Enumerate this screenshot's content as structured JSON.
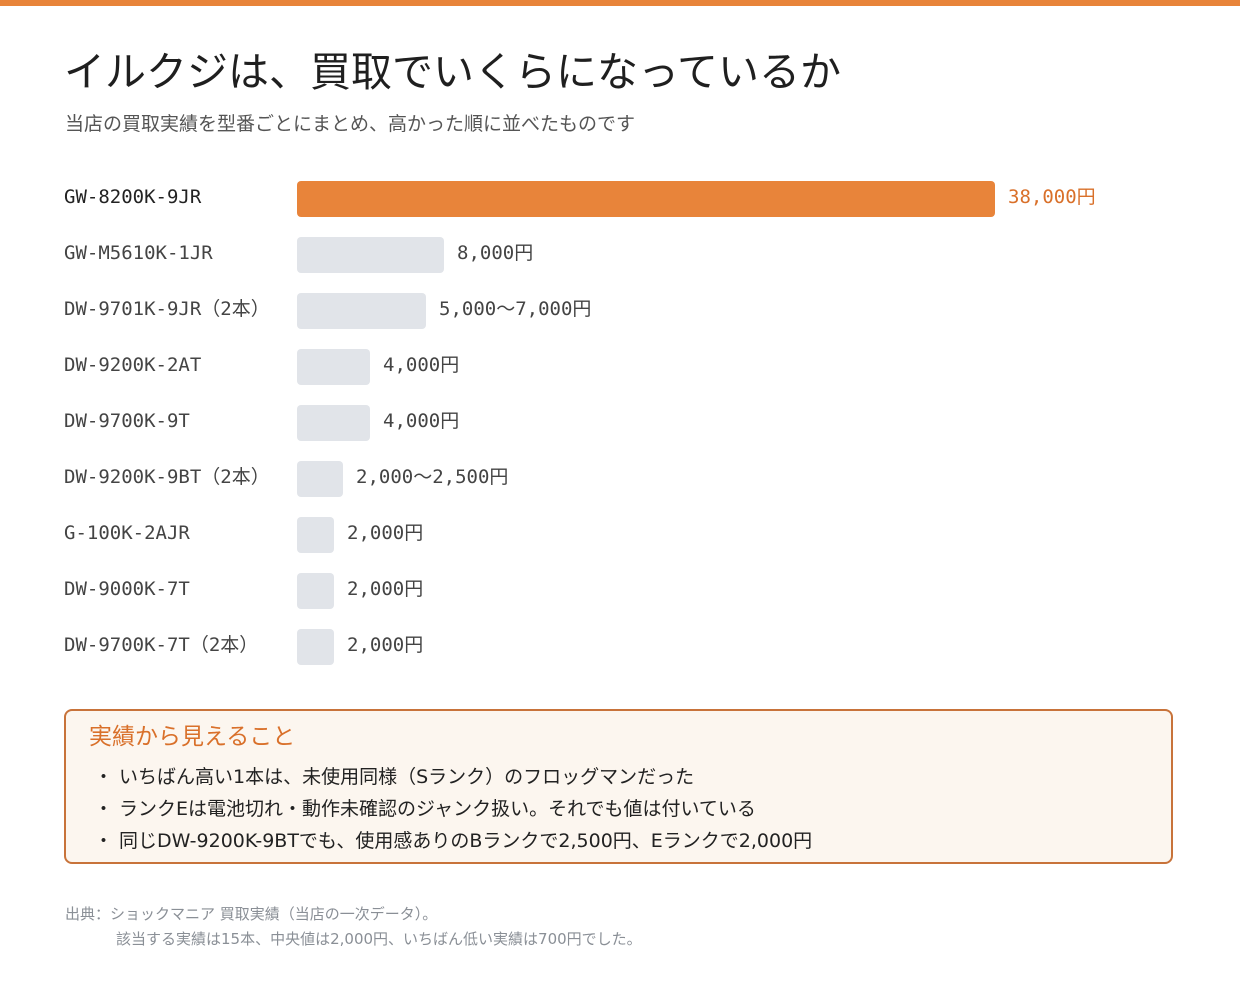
{
  "header": {
    "accent_color": "#e8843a",
    "title": "イルクジは、買取でいくらになっているか",
    "subtitle": "当店の買取実績を型番ごとにまとめ、高かった順に並べたものです"
  },
  "chart_data": {
    "type": "bar",
    "orientation": "horizontal",
    "title": "",
    "xlabel": "",
    "ylabel": "",
    "xlim": [
      0,
      38000
    ],
    "grid": false,
    "highlight_color": "#e8843a",
    "bar_color": "#e1e4e9",
    "bars": [
      {
        "label": "GW-8200K-9JR",
        "value": 38000,
        "value_label": "38,000円",
        "highlight": true
      },
      {
        "label": "GW-M5610K-1JR",
        "value": 8000,
        "value_label": "8,000円",
        "highlight": false
      },
      {
        "label": "DW-9701K-9JR（2本）",
        "value": 7000,
        "value_label": "5,000～7,000円",
        "highlight": false
      },
      {
        "label": "DW-9200K-2AT",
        "value": 4000,
        "value_label": "4,000円",
        "highlight": false
      },
      {
        "label": "DW-9700K-9T",
        "value": 4000,
        "value_label": "4,000円",
        "highlight": false
      },
      {
        "label": "DW-9200K-9BT（2本）",
        "value": 2500,
        "value_label": "2,000～2,500円",
        "highlight": false
      },
      {
        "label": "G-100K-2AJR",
        "value": 2000,
        "value_label": "2,000円",
        "highlight": false
      },
      {
        "label": "DW-9000K-7T",
        "value": 2000,
        "value_label": "2,000円",
        "highlight": false
      },
      {
        "label": "DW-9700K-7T（2本）",
        "value": 2000,
        "value_label": "2,000円",
        "highlight": false
      }
    ]
  },
  "insights": {
    "title": "実績から見えること",
    "bullet": "・",
    "items": [
      "いちばん高い1本は、未使用同様（Sランク）のフロッグマンだった",
      "ランクEは電池切れ・動作未確認のジャンク扱い。それでも値は付いている",
      "同じDW-9200K-9BTでも、使用感ありのBランクで2,500円、Eランクで2,000円"
    ]
  },
  "footnote": {
    "line1": "出典：ショックマニア 買取実績（当店の一次データ）。",
    "line2": "該当する実績は15本、中央値は2,000円、いちばん低い実績は700円でした。"
  }
}
